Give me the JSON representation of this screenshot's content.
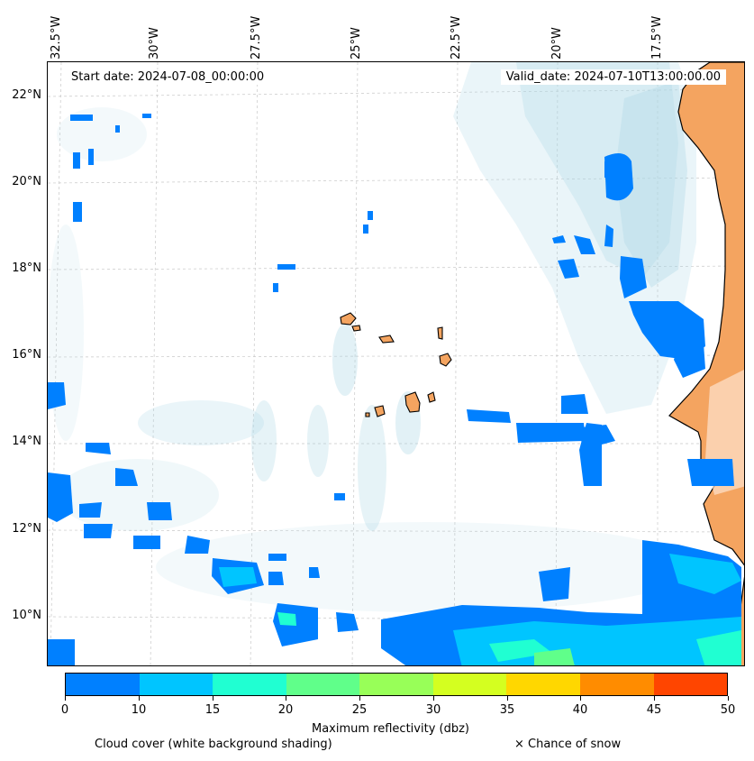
{
  "map": {
    "start_date": "Start date: 2024-07-08_00:00:00",
    "valid_date": "Valid_date: 2024-07-10T13:00:00.00",
    "lon_labels": [
      "32.5°W",
      "30°W",
      "27.5°W",
      "25°W",
      "22.5°W",
      "20°W",
      "17.5°W"
    ],
    "lat_labels": [
      "22°N",
      "20°N",
      "18°N",
      "16°N",
      "14°N",
      "12°N",
      "10°N"
    ],
    "colors": {
      "land": "#f4a460",
      "cloud": "#add8e6",
      "coast": "#000000",
      "gridline": "#c8c8c8"
    }
  },
  "colorbar": {
    "label": "Maximum reflectivity (dbz)",
    "ticks": [
      "0",
      "10",
      "15",
      "20",
      "25",
      "30",
      "35",
      "40",
      "45",
      "50"
    ],
    "colors": [
      "#0080ff",
      "#00c5ff",
      "#20ffd2",
      "#60ff8a",
      "#98ff58",
      "#d4ff20",
      "#ffd700",
      "#ff8c00",
      "#ff4500"
    ]
  },
  "footer": {
    "cloud_text": "Cloud cover (white background shading)",
    "snow_text": "× Chance of snow"
  }
}
